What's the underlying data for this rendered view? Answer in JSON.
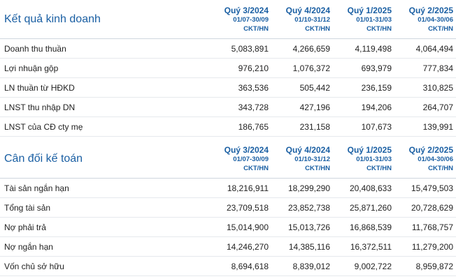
{
  "sections": [
    {
      "title": "Kết quả kinh doanh",
      "columns": [
        {
          "quarter": "Quý 3/2024",
          "range": "01/07-30/09",
          "unit": "CKT/HN"
        },
        {
          "quarter": "Quý 4/2024",
          "range": "01/10-31/12",
          "unit": "CKT/HN"
        },
        {
          "quarter": "Quý 1/2025",
          "range": "01/01-31/03",
          "unit": "CKT/HN"
        },
        {
          "quarter": "Quý 2/2025",
          "range": "01/04-30/06",
          "unit": "CKT/HN"
        }
      ],
      "rows": [
        {
          "label": "Doanh thu thuần",
          "values": [
            "5,083,891",
            "4,266,659",
            "4,119,498",
            "4,064,494"
          ]
        },
        {
          "label": "Lợi nhuận gộp",
          "values": [
            "976,210",
            "1,076,372",
            "693,979",
            "777,834"
          ]
        },
        {
          "label": "LN thuần từ HĐKD",
          "values": [
            "363,536",
            "505,442",
            "236,159",
            "310,825"
          ]
        },
        {
          "label": "LNST thu nhập DN",
          "values": [
            "343,728",
            "427,196",
            "194,206",
            "264,707"
          ]
        },
        {
          "label": "LNST của CĐ cty mẹ",
          "values": [
            "186,765",
            "231,158",
            "107,673",
            "139,991"
          ]
        }
      ]
    },
    {
      "title": "Cân đối kế toán",
      "columns": [
        {
          "quarter": "Quý 3/2024",
          "range": "01/07-30/09",
          "unit": "CKT/HN"
        },
        {
          "quarter": "Quý 4/2024",
          "range": "01/10-31/12",
          "unit": "CKT/HN"
        },
        {
          "quarter": "Quý 1/2025",
          "range": "01/01-31/03",
          "unit": "CKT/HN"
        },
        {
          "quarter": "Quý 2/2025",
          "range": "01/04-30/06",
          "unit": "CKT/HN"
        }
      ],
      "rows": [
        {
          "label": "Tài sản ngắn hạn",
          "values": [
            "18,216,911",
            "18,299,290",
            "20,408,633",
            "15,479,503"
          ]
        },
        {
          "label": "Tổng tài sản",
          "values": [
            "23,709,518",
            "23,852,738",
            "25,871,260",
            "20,728,629"
          ]
        },
        {
          "label": "Nợ phải trả",
          "values": [
            "15,014,900",
            "15,013,726",
            "16,868,539",
            "11,768,757"
          ]
        },
        {
          "label": "Nợ ngắn hạn",
          "values": [
            "14,246,270",
            "14,385,116",
            "16,372,511",
            "11,279,200"
          ]
        },
        {
          "label": "Vốn chủ sở hữu",
          "values": [
            "8,694,618",
            "8,839,012",
            "9,002,722",
            "8,959,872"
          ]
        }
      ]
    }
  ]
}
